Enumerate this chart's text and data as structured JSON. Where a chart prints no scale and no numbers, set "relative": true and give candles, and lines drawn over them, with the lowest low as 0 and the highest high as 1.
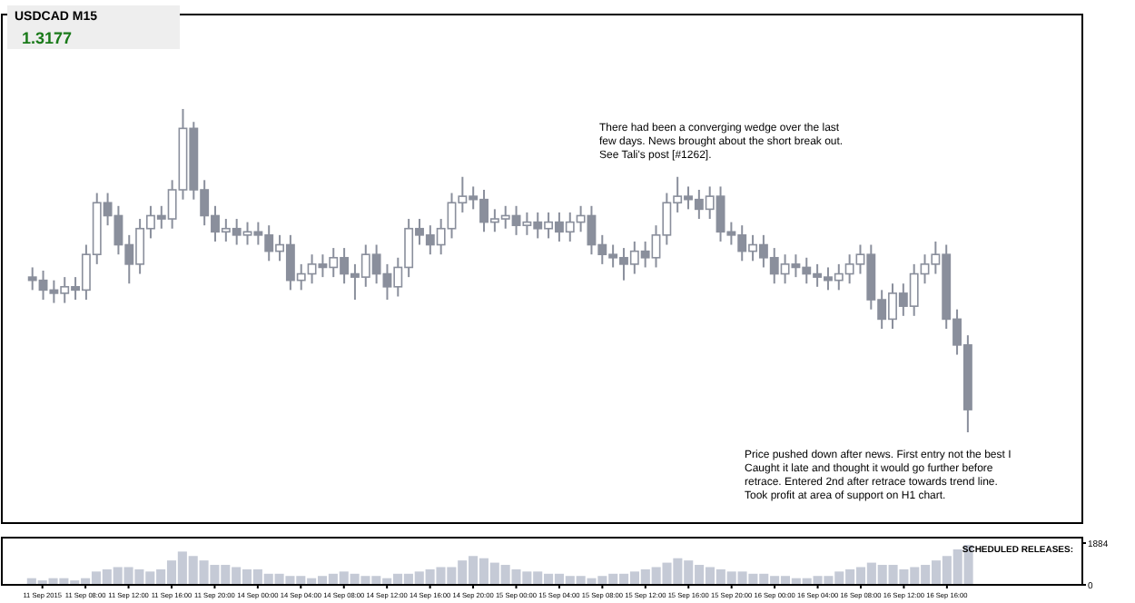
{
  "chart_data": [
    {
      "type": "candlestick",
      "title": "USDCAD M15",
      "relative": true,
      "annotations": [
        "1.3177",
        "There had been a converging wedge over the last few days. News brought about the short break out. See Tali's post [#1262].",
        "Price pushed down after news. First entry not the best I Caught it late and thought it would go further before retrace. Entered 2nd after retrace towards trend line. Took profit at area of support on H1 chart."
      ],
      "categories": [
        null,
        null,
        null,
        null,
        null,
        null,
        null,
        null,
        null,
        null,
        null,
        null,
        null,
        null,
        null,
        null,
        null,
        null,
        null,
        null,
        null,
        null,
        null,
        null,
        null,
        null,
        null,
        null,
        null,
        null,
        null,
        null,
        null,
        null,
        null,
        null,
        null,
        null,
        null,
        null,
        null,
        null,
        null,
        null,
        null,
        null,
        null,
        null,
        null,
        null,
        null,
        null,
        null,
        null,
        null,
        null,
        null,
        null,
        null,
        null,
        null,
        null,
        null,
        null,
        null,
        null,
        null,
        null,
        null,
        null,
        null,
        null,
        null,
        null,
        null,
        null,
        null,
        null,
        null,
        null,
        null,
        null,
        null,
        null,
        null,
        null,
        null,
        null,
        null,
        null,
        null,
        null,
        null,
        null,
        null,
        null,
        null,
        null
      ],
      "series": [
        {
          "color": "#8a8f9c",
          "ohlc": [
            [
              0.48,
              0.51,
              0.44,
              0.47
            ],
            [
              0.47,
              0.5,
              0.41,
              0.44
            ],
            [
              0.44,
              0.47,
              0.4,
              0.43
            ],
            [
              0.43,
              0.48,
              0.4,
              0.45
            ],
            [
              0.45,
              0.48,
              0.41,
              0.44
            ],
            [
              0.44,
              0.58,
              0.41,
              0.55
            ],
            [
              0.55,
              0.74,
              0.52,
              0.71
            ],
            [
              0.71,
              0.74,
              0.64,
              0.67
            ],
            [
              0.67,
              0.7,
              0.55,
              0.58
            ],
            [
              0.58,
              0.61,
              0.46,
              0.52
            ],
            [
              0.52,
              0.66,
              0.49,
              0.63
            ],
            [
              0.63,
              0.7,
              0.6,
              0.67
            ],
            [
              0.67,
              0.7,
              0.63,
              0.66
            ],
            [
              0.66,
              0.78,
              0.63,
              0.75
            ],
            [
              0.75,
              1,
              0.72,
              0.94
            ],
            [
              0.94,
              0.96,
              0.72,
              0.75
            ],
            [
              0.75,
              0.78,
              0.64,
              0.67
            ],
            [
              0.67,
              0.7,
              0.59,
              0.62
            ],
            [
              0.62,
              0.66,
              0.59,
              0.63
            ],
            [
              0.63,
              0.66,
              0.58,
              0.61
            ],
            [
              0.61,
              0.65,
              0.58,
              0.62
            ],
            [
              0.62,
              0.65,
              0.58,
              0.61
            ],
            [
              0.61,
              0.64,
              0.53,
              0.56
            ],
            [
              0.56,
              0.61,
              0.53,
              0.58
            ],
            [
              0.58,
              0.61,
              0.44,
              0.47
            ],
            [
              0.47,
              0.52,
              0.44,
              0.49
            ],
            [
              0.49,
              0.55,
              0.46,
              0.52
            ],
            [
              0.52,
              0.55,
              0.48,
              0.51
            ],
            [
              0.51,
              0.57,
              0.48,
              0.54
            ],
            [
              0.54,
              0.57,
              0.46,
              0.49
            ],
            [
              0.49,
              0.52,
              0.41,
              0.48
            ],
            [
              0.48,
              0.58,
              0.45,
              0.55
            ],
            [
              0.55,
              0.58,
              0.46,
              0.49
            ],
            [
              0.49,
              0.52,
              0.41,
              0.45
            ],
            [
              0.45,
              0.54,
              0.42,
              0.51
            ],
            [
              0.51,
              0.66,
              0.48,
              0.63
            ],
            [
              0.63,
              0.66,
              0.58,
              0.61
            ],
            [
              0.61,
              0.64,
              0.55,
              0.58
            ],
            [
              0.58,
              0.66,
              0.55,
              0.63
            ],
            [
              0.63,
              0.74,
              0.6,
              0.71
            ],
            [
              0.71,
              0.79,
              0.68,
              0.73
            ],
            [
              0.73,
              0.76,
              0.69,
              0.72
            ],
            [
              0.72,
              0.75,
              0.62,
              0.65
            ],
            [
              0.65,
              0.69,
              0.62,
              0.66
            ],
            [
              0.66,
              0.7,
              0.63,
              0.67
            ],
            [
              0.67,
              0.7,
              0.61,
              0.64
            ],
            [
              0.64,
              0.68,
              0.61,
              0.65
            ],
            [
              0.65,
              0.68,
              0.6,
              0.63
            ],
            [
              0.63,
              0.68,
              0.6,
              0.65
            ],
            [
              0.65,
              0.68,
              0.59,
              0.62
            ],
            [
              0.62,
              0.68,
              0.59,
              0.65
            ],
            [
              0.65,
              0.7,
              0.62,
              0.67
            ],
            [
              0.67,
              0.7,
              0.55,
              0.58
            ],
            [
              0.58,
              0.61,
              0.52,
              0.55
            ],
            [
              0.55,
              0.58,
              0.51,
              0.54
            ],
            [
              0.54,
              0.57,
              0.47,
              0.52
            ],
            [
              0.52,
              0.59,
              0.49,
              0.56
            ],
            [
              0.56,
              0.59,
              0.51,
              0.54
            ],
            [
              0.54,
              0.64,
              0.51,
              0.61
            ],
            [
              0.61,
              0.74,
              0.58,
              0.71
            ],
            [
              0.71,
              0.79,
              0.68,
              0.73
            ],
            [
              0.73,
              0.76,
              0.69,
              0.72
            ],
            [
              0.72,
              0.75,
              0.66,
              0.69
            ],
            [
              0.69,
              0.76,
              0.66,
              0.73
            ],
            [
              0.73,
              0.76,
              0.59,
              0.62
            ],
            [
              0.62,
              0.65,
              0.58,
              0.61
            ],
            [
              0.61,
              0.64,
              0.53,
              0.56
            ],
            [
              0.56,
              0.61,
              0.53,
              0.58
            ],
            [
              0.58,
              0.61,
              0.51,
              0.54
            ],
            [
              0.54,
              0.57,
              0.46,
              0.49
            ],
            [
              0.49,
              0.55,
              0.46,
              0.52
            ],
            [
              0.52,
              0.55,
              0.48,
              0.51
            ],
            [
              0.51,
              0.54,
              0.46,
              0.49
            ],
            [
              0.49,
              0.52,
              0.45,
              0.48
            ],
            [
              0.48,
              0.51,
              0.44,
              0.47
            ],
            [
              0.47,
              0.52,
              0.44,
              0.49
            ],
            [
              0.49,
              0.55,
              0.46,
              0.52
            ],
            [
              0.52,
              0.58,
              0.49,
              0.55
            ],
            [
              0.55,
              0.58,
              0.38,
              0.41
            ],
            [
              0.41,
              0.44,
              0.32,
              0.35
            ],
            [
              0.35,
              0.46,
              0.32,
              0.43
            ],
            [
              0.43,
              0.46,
              0.36,
              0.39
            ],
            [
              0.39,
              0.52,
              0.36,
              0.49
            ],
            [
              0.49,
              0.55,
              0.46,
              0.52
            ],
            [
              0.52,
              0.59,
              0.49,
              0.55
            ],
            [
              0.55,
              0.58,
              0.32,
              0.35
            ],
            [
              0.35,
              0.38,
              0.24,
              0.27
            ],
            [
              0.27,
              0.3,
              0,
              0.07
            ],
            null,
            null,
            null,
            null,
            null,
            null,
            null,
            null,
            null,
            null
          ]
        }
      ]
    },
    {
      "type": "bar",
      "ylim": [
        0,
        1884
      ],
      "yticks": [
        0,
        1884
      ],
      "color": "#c5cad6",
      "annotations": [
        "SCHEDULED RELEASES:"
      ],
      "categories": [
        null,
        "11 Sep 2015",
        null,
        null,
        null,
        "11 Sep 08:00",
        null,
        null,
        null,
        "11 Sep 12:00",
        null,
        null,
        null,
        "11 Sep 16:00",
        null,
        null,
        null,
        "11 Sep 20:00",
        null,
        null,
        null,
        "14 Sep 00:00",
        null,
        null,
        null,
        "14 Sep 04:00",
        null,
        null,
        null,
        "14 Sep 08:00",
        null,
        null,
        null,
        "14 Sep 12:00",
        null,
        null,
        null,
        "14 Sep 16:00",
        null,
        null,
        null,
        "14 Sep 20:00",
        null,
        null,
        null,
        "15 Sep 00:00",
        null,
        null,
        null,
        "15 Sep 04:00",
        null,
        null,
        null,
        "15 Sep 08:00",
        null,
        null,
        null,
        "15 Sep 12:00",
        null,
        null,
        null,
        "15 Sep 16:00",
        null,
        null,
        null,
        "15 Sep 20:00",
        null,
        null,
        null,
        "16 Sep 00:00",
        null,
        null,
        null,
        "16 Sep 04:00",
        null,
        null,
        null,
        "16 Sep 08:00",
        null,
        null,
        null,
        "16 Sep 12:00",
        null,
        null,
        null,
        "16 Sep 16:00",
        null,
        null,
        null,
        null,
        null,
        null,
        null,
        null,
        null,
        null,
        null,
        null
      ],
      "values": [
        300,
        200,
        300,
        300,
        200,
        300,
        600,
        700,
        800,
        800,
        700,
        600,
        700,
        1100,
        1500,
        1300,
        1100,
        900,
        900,
        800,
        700,
        700,
        500,
        500,
        400,
        400,
        300,
        400,
        500,
        600,
        500,
        400,
        400,
        300,
        500,
        500,
        600,
        700,
        800,
        800,
        1100,
        1300,
        1200,
        1000,
        900,
        700,
        600,
        600,
        500,
        500,
        400,
        400,
        300,
        400,
        500,
        500,
        600,
        700,
        800,
        1000,
        1200,
        1100,
        900,
        800,
        700,
        600,
        600,
        500,
        500,
        400,
        400,
        300,
        300,
        400,
        400,
        600,
        700,
        800,
        1000,
        900,
        900,
        700,
        800,
        900,
        1100,
        1300,
        1600,
        1800,
        null,
        null,
        null,
        null,
        null,
        null,
        null,
        null,
        null,
        null
      ]
    }
  ]
}
